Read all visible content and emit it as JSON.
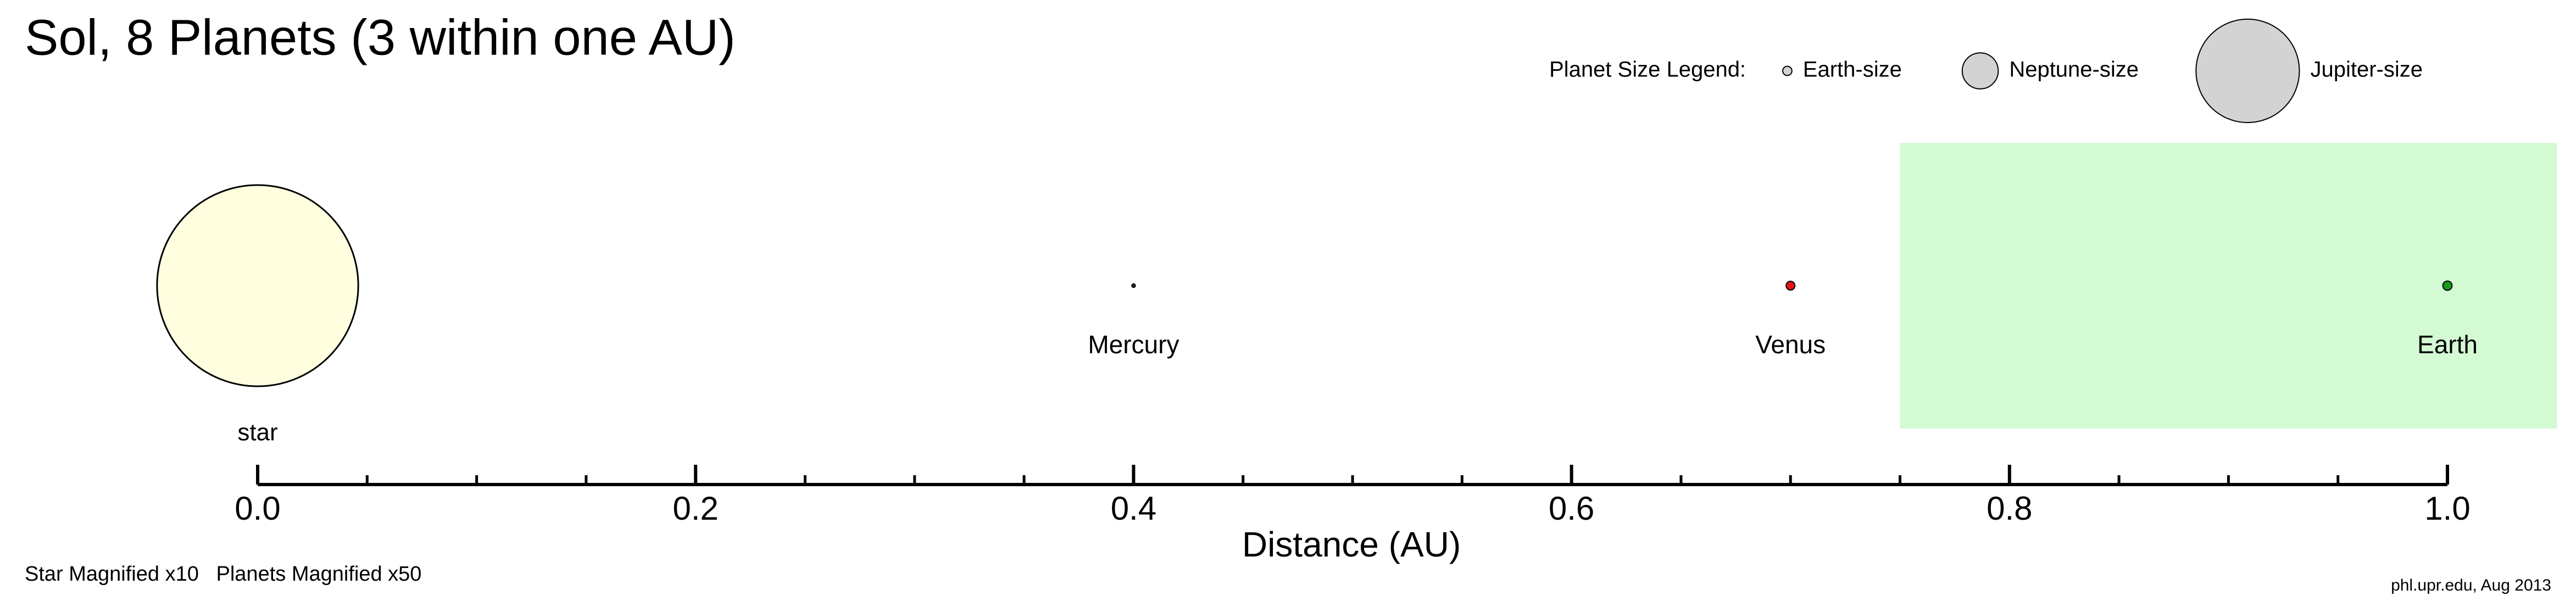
{
  "chart_data": {
    "type": "orbit",
    "title": "Sol, 8 Planets (3 within one AU)",
    "xlabel": "Distance (AU)",
    "xlim": [
      0,
      1
    ],
    "xticks": [
      {
        "value": 0,
        "label": "0.0"
      },
      0.2,
      0.4,
      0.6,
      0.8,
      {
        "value": 1,
        "label": "1.0"
      }
    ],
    "xminor_ticks": [
      0.05,
      0.1,
      0.15,
      0.25,
      0.3,
      0.35,
      0.45,
      0.5,
      0.55,
      0.65,
      0.7,
      0.75,
      0.85,
      0.9,
      0.95
    ],
    "habitable_zone": [
      0.75,
      1.05
    ],
    "habitable_zone_color": "#d4fad4",
    "star_magnification": 10,
    "planet_magnification": 50,
    "star": {
      "name": "star",
      "x": 0,
      "size": 109,
      "color": "#ffffe0"
    },
    "planets": [
      {
        "name": "Mercury",
        "x": 0.4,
        "size": 0.38,
        "color": "#333333"
      },
      {
        "name": "Venus",
        "x": 0.7,
        "size": 0.95,
        "color": "#e8141a"
      },
      {
        "name": "Earth",
        "x": 1.0,
        "size": 1.0,
        "color": "#1a9a1a"
      }
    ],
    "legend": {
      "title": "Planet Size Legend:",
      "color": "#d3d3d3",
      "items": [
        {
          "name": "Earth-size",
          "size": 1.0
        },
        {
          "name": "Neptune-size",
          "size": 3.9
        },
        {
          "name": "Jupiter-size",
          "size": 11.2
        }
      ]
    },
    "note": "Star Magnified x10   Planets Magnified x50",
    "credit": "phl.upr.edu, Aug 2013"
  }
}
